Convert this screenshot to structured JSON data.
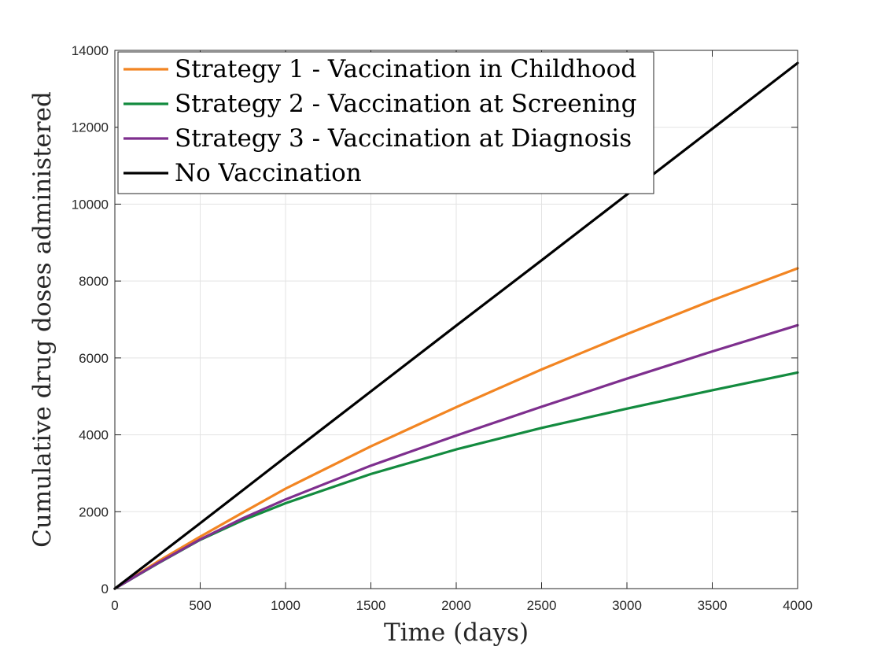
{
  "chart_data": {
    "type": "line",
    "title": "",
    "xlabel": "Time (days)",
    "ylabel": "Cumulative drug doses administered",
    "xlim": [
      0,
      4000
    ],
    "ylim": [
      0,
      14000
    ],
    "xticks": [
      0,
      500,
      1000,
      1500,
      2000,
      2500,
      3000,
      3500,
      4000
    ],
    "yticks": [
      0,
      2000,
      4000,
      6000,
      8000,
      10000,
      12000,
      14000
    ],
    "xtick_labels": [
      "0",
      "500",
      "1000",
      "1500",
      "2000",
      "2500",
      "3000",
      "3500",
      "4000"
    ],
    "ytick_labels": [
      "0",
      "2000",
      "4000",
      "6000",
      "8000",
      "10000",
      "12000",
      "14000"
    ],
    "grid": true,
    "legend_position": "top-left",
    "x": [
      0,
      250,
      500,
      750,
      1000,
      1500,
      2000,
      2500,
      3000,
      3500,
      4000
    ],
    "series": [
      {
        "name": "Strategy 1 - Vaccination in Childhood",
        "color": "#F28522",
        "values": [
          0,
          700,
          1350,
          1980,
          2600,
          3700,
          4720,
          5700,
          6620,
          7500,
          8330
        ]
      },
      {
        "name": "Strategy 2 - Vaccination at Screening",
        "color": "#138B3F",
        "values": [
          0,
          650,
          1270,
          1780,
          2220,
          2980,
          3620,
          4180,
          4680,
          5160,
          5620
        ]
      },
      {
        "name": "Strategy 3 - Vaccination at Diagnosis",
        "color": "#7E2F8E",
        "values": [
          0,
          660,
          1280,
          1830,
          2320,
          3200,
          3980,
          4730,
          5460,
          6170,
          6850
        ]
      },
      {
        "name": "No Vaccination",
        "color": "#000000",
        "values": [
          0,
          850,
          1700,
          2560,
          3420,
          5130,
          6840,
          8540,
          10250,
          11960,
          13670
        ]
      }
    ]
  }
}
